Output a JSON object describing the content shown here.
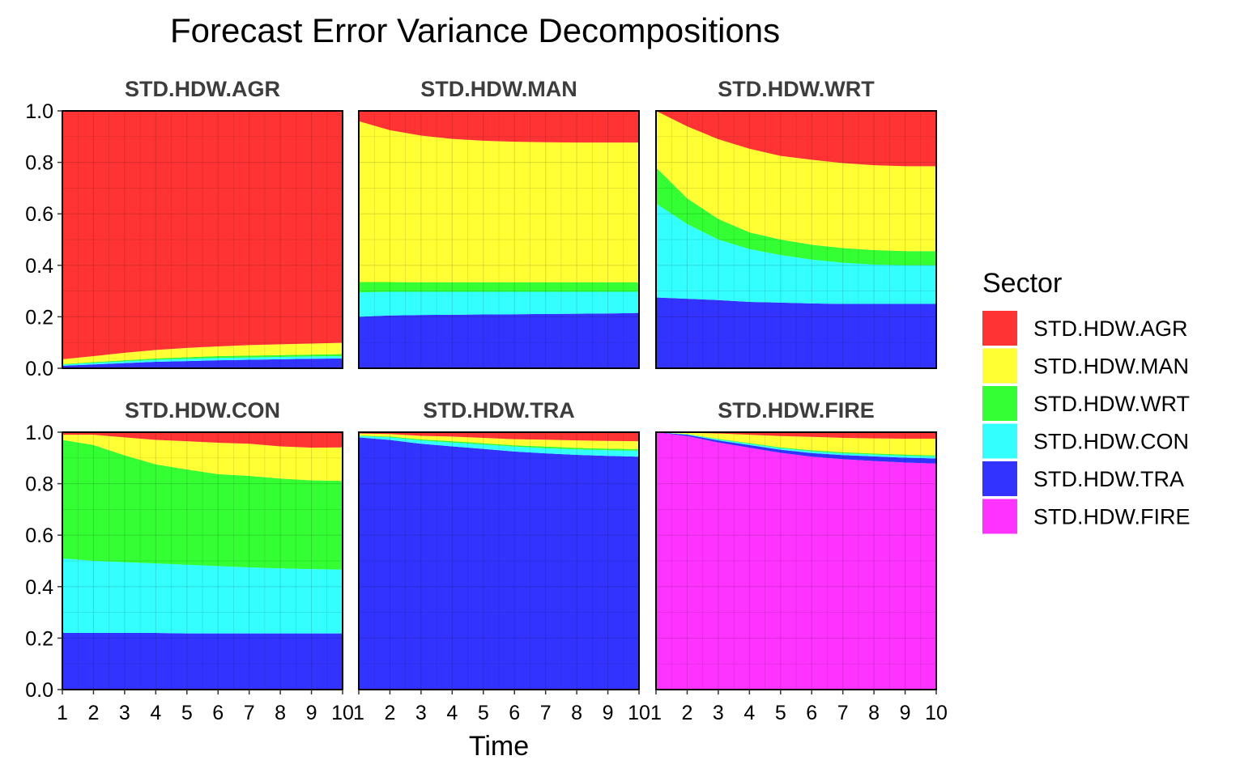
{
  "chart_data": {
    "type": "area",
    "title": "Forecast Error Variance Decompositions",
    "xlabel": "Time",
    "ylabel": "",
    "x": [
      1,
      2,
      3,
      4,
      5,
      6,
      7,
      8,
      9,
      10
    ],
    "xticks": [
      "1",
      "2",
      "3",
      "4",
      "5",
      "6",
      "7",
      "8",
      "9",
      "10"
    ],
    "ylim": [
      0,
      1
    ],
    "yticks": [
      "0.0",
      "0.2",
      "0.4",
      "0.6",
      "0.8",
      "1.0"
    ],
    "grid": true,
    "stacked": true,
    "legend": {
      "title": "Sector",
      "position": "right",
      "entries": [
        "STD.HDW.AGR",
        "STD.HDW.MAN",
        "STD.HDW.WRT",
        "STD.HDW.CON",
        "STD.HDW.TRA",
        "STD.HDW.FIRE"
      ]
    },
    "colors": {
      "STD.HDW.AGR": "#ff3333",
      "STD.HDW.MAN": "#ffff33",
      "STD.HDW.WRT": "#33ff33",
      "STD.HDW.CON": "#33ffff",
      "STD.HDW.TRA": "#3333ff",
      "STD.HDW.FIRE": "#ff33ff"
    },
    "stack_order_bottom_to_top": [
      "STD.HDW.FIRE",
      "STD.HDW.TRA",
      "STD.HDW.CON",
      "STD.HDW.WRT",
      "STD.HDW.MAN",
      "STD.HDW.AGR"
    ],
    "panels": [
      {
        "name": "STD.HDW.AGR",
        "series": [
          {
            "name": "STD.HDW.FIRE",
            "values": [
              0.0,
              0.0,
              0.0,
              0.0,
              0.0,
              0.0,
              0.0,
              0.0,
              0.0,
              0.0
            ]
          },
          {
            "name": "STD.HDW.TRA",
            "values": [
              0.01,
              0.015,
              0.02,
              0.025,
              0.028,
              0.031,
              0.033,
              0.035,
              0.037,
              0.038
            ]
          },
          {
            "name": "STD.HDW.CON",
            "values": [
              0.004,
              0.006,
              0.007,
              0.008,
              0.009,
              0.009,
              0.009,
              0.009,
              0.009,
              0.009
            ]
          },
          {
            "name": "STD.HDW.WRT",
            "values": [
              0.002,
              0.003,
              0.004,
              0.005,
              0.006,
              0.007,
              0.007,
              0.007,
              0.007,
              0.008
            ]
          },
          {
            "name": "STD.HDW.MAN",
            "values": [
              0.019,
              0.023,
              0.029,
              0.033,
              0.036,
              0.038,
              0.041,
              0.042,
              0.043,
              0.044
            ]
          },
          {
            "name": "STD.HDW.AGR",
            "values": [
              0.965,
              0.953,
              0.94,
              0.929,
              0.921,
              0.915,
              0.91,
              0.907,
              0.904,
              0.901
            ]
          }
        ]
      },
      {
        "name": "STD.HDW.MAN",
        "series": [
          {
            "name": "STD.HDW.FIRE",
            "values": [
              0.0,
              0.0,
              0.0,
              0.0,
              0.0,
              0.0,
              0.0,
              0.0,
              0.0,
              0.0
            ]
          },
          {
            "name": "STD.HDW.TRA",
            "values": [
              0.2,
              0.205,
              0.207,
              0.208,
              0.209,
              0.21,
              0.211,
              0.212,
              0.213,
              0.215
            ]
          },
          {
            "name": "STD.HDW.CON",
            "values": [
              0.095,
              0.092,
              0.09,
              0.089,
              0.088,
              0.087,
              0.086,
              0.085,
              0.084,
              0.082
            ]
          },
          {
            "name": "STD.HDW.WRT",
            "values": [
              0.04,
              0.038,
              0.037,
              0.037,
              0.037,
              0.037,
              0.037,
              0.037,
              0.037,
              0.037
            ]
          },
          {
            "name": "STD.HDW.MAN",
            "values": [
              0.625,
              0.59,
              0.57,
              0.557,
              0.55,
              0.546,
              0.544,
              0.543,
              0.543,
              0.543
            ]
          },
          {
            "name": "STD.HDW.AGR",
            "values": [
              0.04,
              0.075,
              0.096,
              0.109,
              0.116,
              0.12,
              0.122,
              0.123,
              0.123,
              0.123
            ]
          }
        ]
      },
      {
        "name": "STD.HDW.WRT",
        "series": [
          {
            "name": "STD.HDW.FIRE",
            "values": [
              0.0,
              0.0,
              0.0,
              0.0,
              0.0,
              0.0,
              0.0,
              0.0,
              0.0,
              0.0
            ]
          },
          {
            "name": "STD.HDW.TRA",
            "values": [
              0.275,
              0.27,
              0.265,
              0.258,
              0.255,
              0.252,
              0.25,
              0.25,
              0.25,
              0.25
            ]
          },
          {
            "name": "STD.HDW.CON",
            "values": [
              0.365,
              0.29,
              0.235,
              0.205,
              0.185,
              0.17,
              0.16,
              0.153,
              0.15,
              0.15
            ]
          },
          {
            "name": "STD.HDW.WRT",
            "values": [
              0.14,
              0.1,
              0.08,
              0.065,
              0.06,
              0.058,
              0.057,
              0.056,
              0.055,
              0.055
            ]
          },
          {
            "name": "STD.HDW.MAN",
            "values": [
              0.22,
              0.28,
              0.31,
              0.325,
              0.325,
              0.33,
              0.33,
              0.33,
              0.33,
              0.33
            ]
          },
          {
            "name": "STD.HDW.AGR",
            "values": [
              0.0,
              0.06,
              0.11,
              0.147,
              0.175,
              0.19,
              0.203,
              0.211,
              0.215,
              0.215
            ]
          }
        ]
      },
      {
        "name": "STD.HDW.CON",
        "series": [
          {
            "name": "STD.HDW.FIRE",
            "values": [
              0.0,
              0.0,
              0.0,
              0.0,
              0.0,
              0.0,
              0.0,
              0.0,
              0.0,
              0.0
            ]
          },
          {
            "name": "STD.HDW.TRA",
            "values": [
              0.22,
              0.22,
              0.22,
              0.22,
              0.218,
              0.218,
              0.218,
              0.218,
              0.218,
              0.218
            ]
          },
          {
            "name": "STD.HDW.CON",
            "values": [
              0.29,
              0.28,
              0.275,
              0.27,
              0.267,
              0.262,
              0.257,
              0.253,
              0.25,
              0.248
            ]
          },
          {
            "name": "STD.HDW.WRT",
            "values": [
              0.46,
              0.45,
              0.415,
              0.385,
              0.37,
              0.357,
              0.355,
              0.349,
              0.345,
              0.345
            ]
          },
          {
            "name": "STD.HDW.MAN",
            "values": [
              0.02,
              0.04,
              0.07,
              0.095,
              0.11,
              0.122,
              0.125,
              0.125,
              0.127,
              0.13
            ]
          },
          {
            "name": "STD.HDW.AGR",
            "values": [
              0.01,
              0.01,
              0.02,
              0.03,
              0.035,
              0.041,
              0.045,
              0.055,
              0.06,
              0.059
            ]
          }
        ]
      },
      {
        "name": "STD.HDW.TRA",
        "series": [
          {
            "name": "STD.HDW.FIRE",
            "values": [
              0.0,
              0.0,
              0.0,
              0.0,
              0.0,
              0.0,
              0.0,
              0.0,
              0.0,
              0.0
            ]
          },
          {
            "name": "STD.HDW.TRA",
            "values": [
              0.98,
              0.97,
              0.955,
              0.945,
              0.935,
              0.925,
              0.918,
              0.912,
              0.908,
              0.905
            ]
          },
          {
            "name": "STD.HDW.CON",
            "values": [
              0.005,
              0.01,
              0.013,
              0.015,
              0.017,
              0.019,
              0.02,
              0.021,
              0.022,
              0.023
            ]
          },
          {
            "name": "STD.HDW.WRT",
            "values": [
              0.002,
              0.003,
              0.004,
              0.005,
              0.005,
              0.005,
              0.006,
              0.006,
              0.006,
              0.006
            ]
          },
          {
            "name": "STD.HDW.MAN",
            "values": [
              0.008,
              0.01,
              0.014,
              0.018,
              0.021,
              0.024,
              0.027,
              0.029,
              0.03,
              0.031
            ]
          },
          {
            "name": "STD.HDW.AGR",
            "values": [
              0.005,
              0.007,
              0.014,
              0.017,
              0.022,
              0.027,
              0.029,
              0.032,
              0.034,
              0.035
            ]
          }
        ]
      },
      {
        "name": "STD.HDW.FIRE",
        "series": [
          {
            "name": "STD.HDW.FIRE",
            "values": [
              1.0,
              0.985,
              0.96,
              0.94,
              0.92,
              0.905,
              0.895,
              0.888,
              0.882,
              0.878
            ]
          },
          {
            "name": "STD.HDW.TRA",
            "values": [
              0.0,
              0.005,
              0.008,
              0.01,
              0.012,
              0.014,
              0.016,
              0.018,
              0.019,
              0.02
            ]
          },
          {
            "name": "STD.HDW.CON",
            "values": [
              0.0,
              0.002,
              0.004,
              0.005,
              0.006,
              0.007,
              0.007,
              0.007,
              0.008,
              0.008
            ]
          },
          {
            "name": "STD.HDW.WRT",
            "values": [
              0.0,
              0.001,
              0.002,
              0.003,
              0.003,
              0.004,
              0.004,
              0.004,
              0.004,
              0.004
            ]
          },
          {
            "name": "STD.HDW.MAN",
            "values": [
              0.0,
              0.005,
              0.021,
              0.032,
              0.044,
              0.052,
              0.056,
              0.059,
              0.062,
              0.065
            ]
          },
          {
            "name": "STD.HDW.AGR",
            "values": [
              0.0,
              0.002,
              0.005,
              0.01,
              0.015,
              0.018,
              0.022,
              0.024,
              0.025,
              0.025
            ]
          }
        ]
      }
    ]
  }
}
